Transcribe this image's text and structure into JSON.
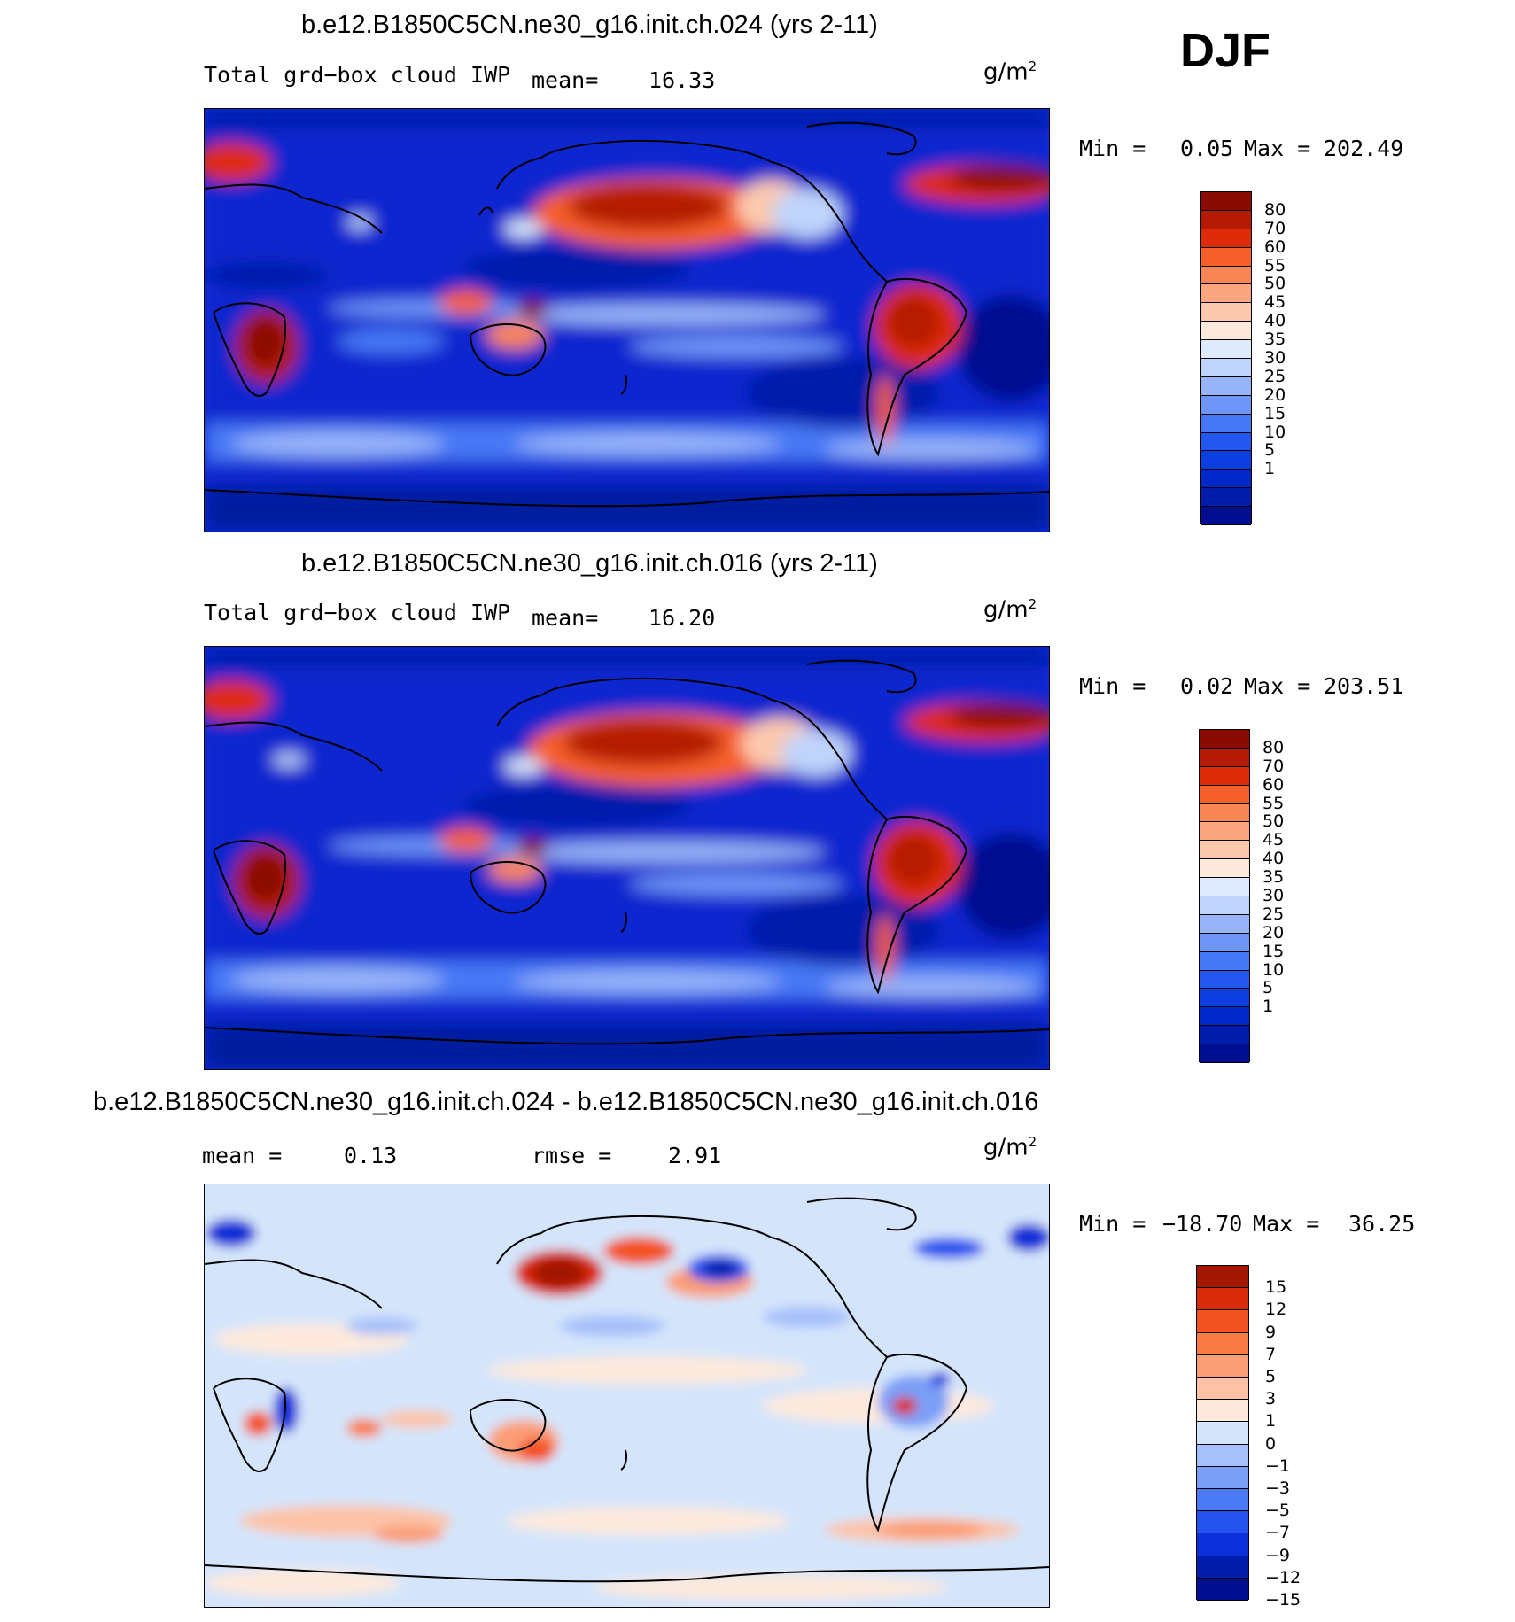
{
  "season": "DJF",
  "colors": {
    "field": [
      "#000e8f",
      "#001cab",
      "#0028c8",
      "#0d3ee0",
      "#2456f0",
      "#4678f5",
      "#6e96f7",
      "#98b4f8",
      "#c0d4fb",
      "#deebfc",
      "#fde9dc",
      "#fcc9ae",
      "#fba581",
      "#f98554",
      "#f55f29",
      "#de2c0b",
      "#b51b04",
      "#8a0b02"
    ],
    "diff": [
      "#000e8f",
      "#001cab",
      "#0b2fd8",
      "#2551ef",
      "#4c7af5",
      "#7a9ff7",
      "#a6c0f9",
      "#d4e5fb",
      "#fde9dc",
      "#fcc3a7",
      "#fb9d76",
      "#f97a45",
      "#f35223",
      "#d92a0a",
      "#a11702"
    ]
  },
  "panels": [
    {
      "title": "b.e12.B1850C5CN.ne30_g16.init.ch.024 (yrs 2-11)",
      "variable": "Total grd−box cloud IWP",
      "mean_label": "mean=",
      "mean_value": "16.33",
      "units": "g/m",
      "units_exp": "2",
      "min_label": "Min =",
      "min_value": "0.05",
      "max_label": "Max =",
      "max_value": "202.49",
      "levels": [
        "80",
        "70",
        "60",
        "55",
        "50",
        "45",
        "40",
        "35",
        "30",
        "25",
        "20",
        "15",
        "10",
        "5",
        "1"
      ]
    },
    {
      "title": "b.e12.B1850C5CN.ne30_g16.init.ch.016 (yrs 2-11)",
      "variable": "Total grd−box cloud IWP",
      "mean_label": "mean=",
      "mean_value": "16.20",
      "units": "g/m",
      "units_exp": "2",
      "min_label": "Min =",
      "min_value": "0.02",
      "max_label": "Max =",
      "max_value": "203.51",
      "levels": [
        "80",
        "70",
        "60",
        "55",
        "50",
        "45",
        "40",
        "35",
        "30",
        "25",
        "20",
        "15",
        "10",
        "5",
        "1"
      ]
    },
    {
      "title": "b.e12.B1850C5CN.ne30_g16.init.ch.024 - b.e12.B1850C5CN.ne30_g16.init.ch.016",
      "mean_label": "mean =",
      "mean_value": "0.13",
      "rmse_label": "rmse =",
      "rmse_value": "2.91",
      "units": "g/m",
      "units_exp": "2",
      "min_label": "Min =",
      "min_value": "−18.70",
      "max_label": "Max =",
      "max_value": "36.25",
      "levels": [
        "15",
        "12",
        "9",
        "7",
        "5",
        "3",
        "1",
        "0",
        "−1",
        "−3",
        "−5",
        "−7",
        "−9",
        "−12",
        "−15"
      ]
    }
  ]
}
